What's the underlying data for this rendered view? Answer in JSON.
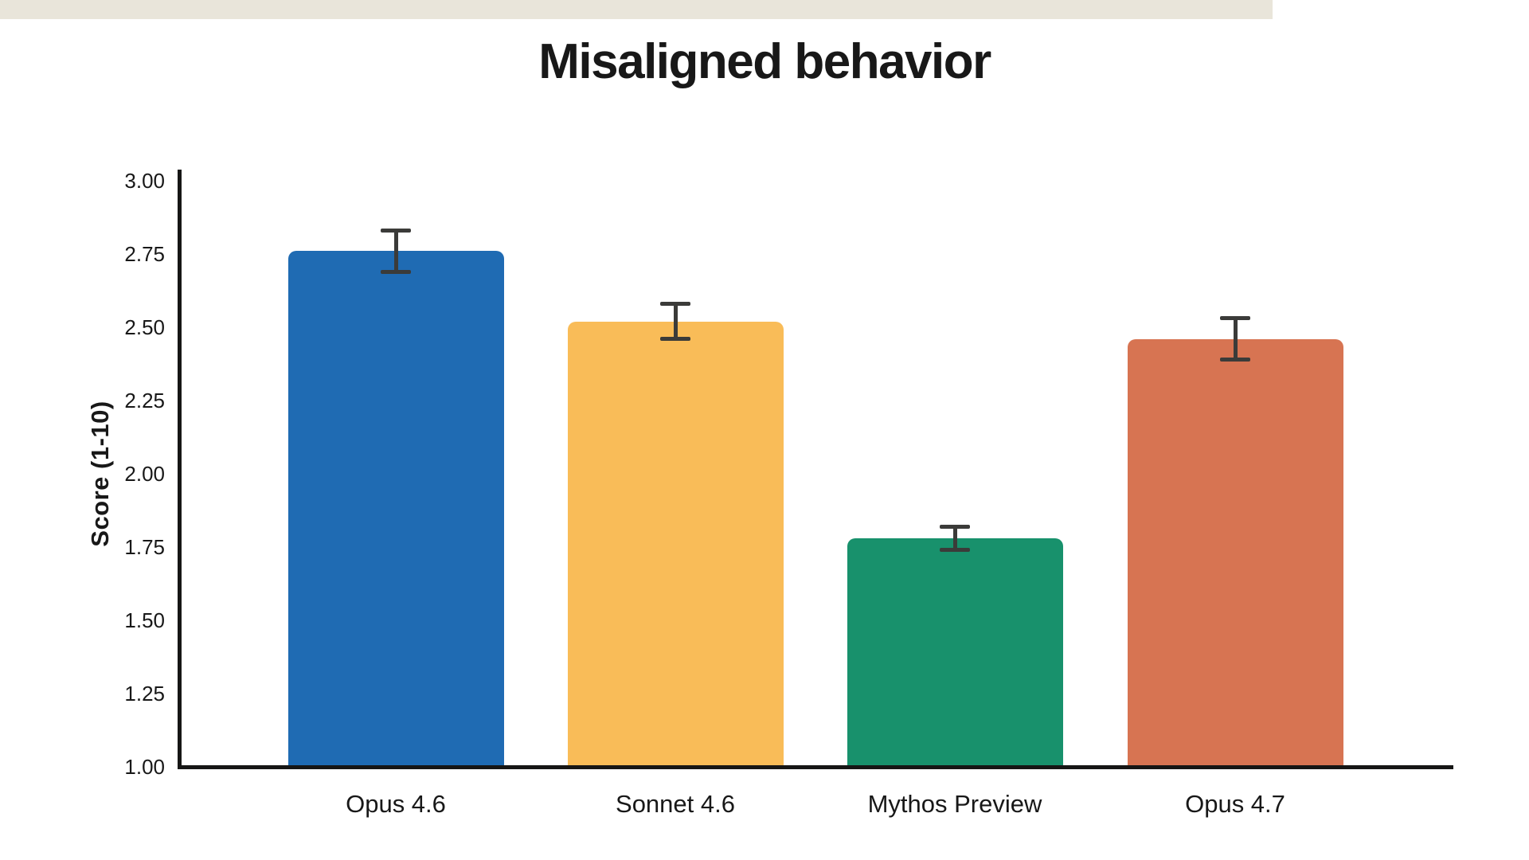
{
  "title": "Misaligned behavior",
  "chart_data": {
    "type": "bar",
    "title": "Misaligned behavior",
    "categories": [
      "Opus 4.6",
      "Sonnet 4.6",
      "Mythos Preview",
      "Opus 4.7"
    ],
    "values": [
      2.76,
      2.52,
      1.78,
      2.46
    ],
    "errors": [
      0.07,
      0.06,
      0.04,
      0.07
    ],
    "bar_colors": [
      "#1f6bb3",
      "#f9bc58",
      "#18916c",
      "#d77452"
    ],
    "xlabel": "",
    "ylabel": "Score (1-10)",
    "ylim": [
      1.0,
      3.0
    ],
    "ytick_labels": [
      "3.00",
      "2.75",
      "2.50",
      "2.25",
      "2.00",
      "1.75",
      "1.50",
      "1.25",
      "1.00"
    ],
    "grid": "horizontal",
    "legend": "none"
  },
  "style": {
    "background": "#ffffff",
    "grid_color": "#e9e5da",
    "axis_color": "#161615",
    "error_bar_color": "#3b3b39",
    "text_color": "#181818"
  }
}
